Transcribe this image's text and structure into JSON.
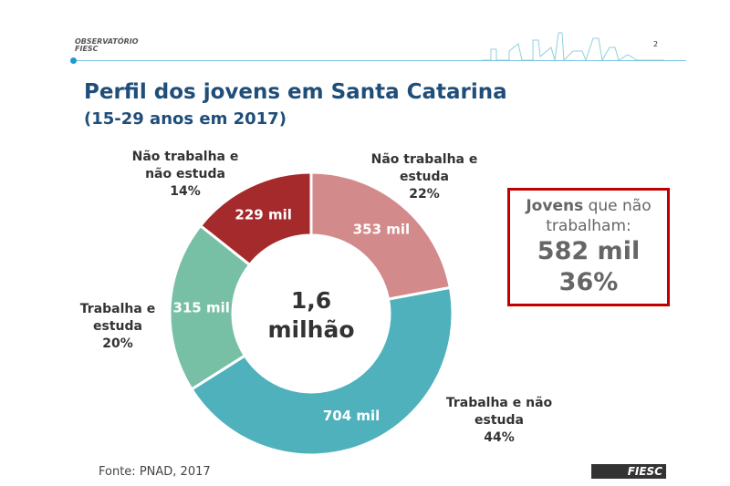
{
  "header": {
    "logo_text": "OBSERVATÓRIO FIESC",
    "logo_line1": "OBSERVATÓRIO",
    "logo_line2": "FIESC",
    "page_number": "2"
  },
  "title": "Perfil dos jovens em Santa Catarina",
  "subtitle": "(15-29 anos em 2017)",
  "chart_data": {
    "type": "pie",
    "donut": true,
    "center_label": [
      "1,6",
      "milhão"
    ],
    "slices": [
      {
        "name": "Não trabalha e estuda",
        "value": 353,
        "value_label": "353 mil",
        "percent": "22%",
        "color": "#d38a8b"
      },
      {
        "name": "Trabalha e não estuda",
        "value": 704,
        "value_label": "704 mil",
        "percent": "44%",
        "color": "#4fb1bc"
      },
      {
        "name": "Trabalha e estuda",
        "value": 315,
        "value_label": "315 mil",
        "percent": "20%",
        "color": "#77c0a6"
      },
      {
        "name": "Não trabalha e não estuda",
        "value": 229,
        "value_label": "229 mil",
        "percent": "14%",
        "color": "#a42a2c"
      }
    ]
  },
  "labels": {
    "s0": [
      "Não trabalha e",
      "estuda",
      "22%"
    ],
    "s1": [
      "Trabalha e não",
      "estuda",
      "44%"
    ],
    "s2": [
      "Trabalha e",
      "estuda",
      "20%"
    ],
    "s3": [
      "Não trabalha e",
      "não estuda",
      "14%"
    ]
  },
  "callout": {
    "bold": "Jovens",
    "rest": " que não",
    "line2": "trabalham:",
    "value": "582 mil",
    "percent": "36%",
    "border_color": "#c00000"
  },
  "footer": {
    "source": "Fonte: PNAD, 2017",
    "brand": "FIESC"
  }
}
